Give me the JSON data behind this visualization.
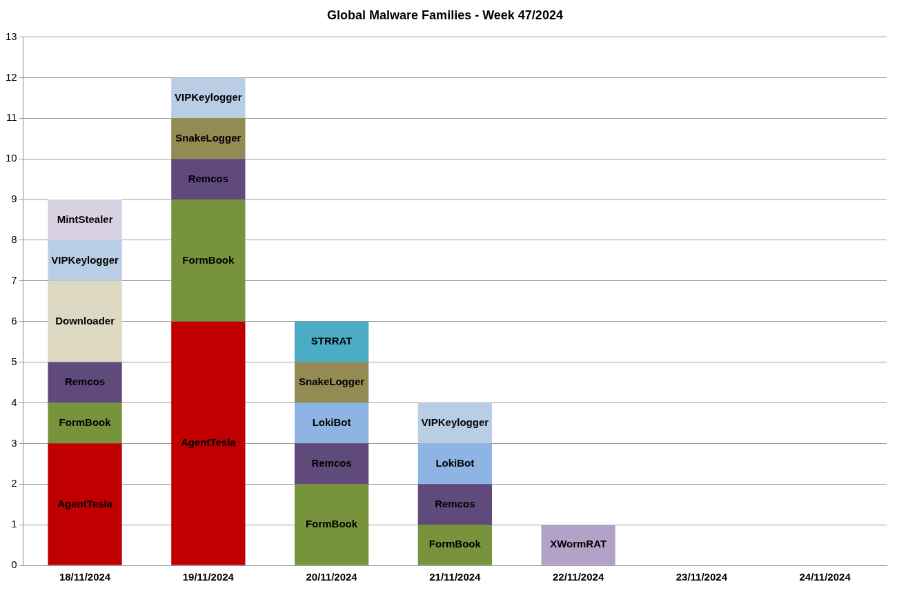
{
  "chart_data": {
    "type": "bar",
    "stacked": true,
    "title": "Global Malware Families - Week 47/2024",
    "categories": [
      "18/11/2024",
      "19/11/2024",
      "20/11/2024",
      "21/11/2024",
      "22/11/2024",
      "23/11/2024",
      "24/11/2024"
    ],
    "series": [
      {
        "name": "AgentTesla",
        "color": "#c00000",
        "values": [
          3,
          6,
          null,
          null,
          null,
          null,
          null
        ]
      },
      {
        "name": "FormBook",
        "color": "#77933c",
        "values": [
          1,
          3,
          2,
          1,
          null,
          null,
          null
        ]
      },
      {
        "name": "Remcos",
        "color": "#604a7b",
        "values": [
          1,
          1,
          1,
          1,
          null,
          null,
          null
        ]
      },
      {
        "name": "Downloader",
        "color": "#ddd9c3",
        "values": [
          2,
          null,
          null,
          null,
          null,
          null,
          null
        ]
      },
      {
        "name": "LokiBot",
        "color": "#8eb4e3",
        "values": [
          null,
          null,
          1,
          1,
          null,
          null,
          null
        ]
      },
      {
        "name": "SnakeLogger",
        "color": "#948a54",
        "values": [
          null,
          1,
          1,
          null,
          null,
          null,
          null
        ]
      },
      {
        "name": "VIPKeylogger",
        "color": "#b9cde5",
        "values": [
          1,
          1,
          null,
          1,
          null,
          null,
          null
        ]
      },
      {
        "name": "MintStealer",
        "color": "#d7d1e2",
        "values": [
          1,
          null,
          null,
          null,
          null,
          null,
          null
        ]
      },
      {
        "name": "STRRAT",
        "color": "#4bacc6",
        "values": [
          null,
          null,
          1,
          null,
          null,
          null,
          null
        ]
      },
      {
        "name": "XWormRAT",
        "color": "#b3a2c7",
        "values": [
          null,
          null,
          null,
          null,
          1,
          null,
          null
        ]
      }
    ],
    "ylim": [
      0,
      13
    ],
    "yticks": [
      0,
      1,
      2,
      3,
      4,
      5,
      6,
      7,
      8,
      9,
      10,
      11,
      12,
      13
    ],
    "grid": "y",
    "legend": false
  }
}
